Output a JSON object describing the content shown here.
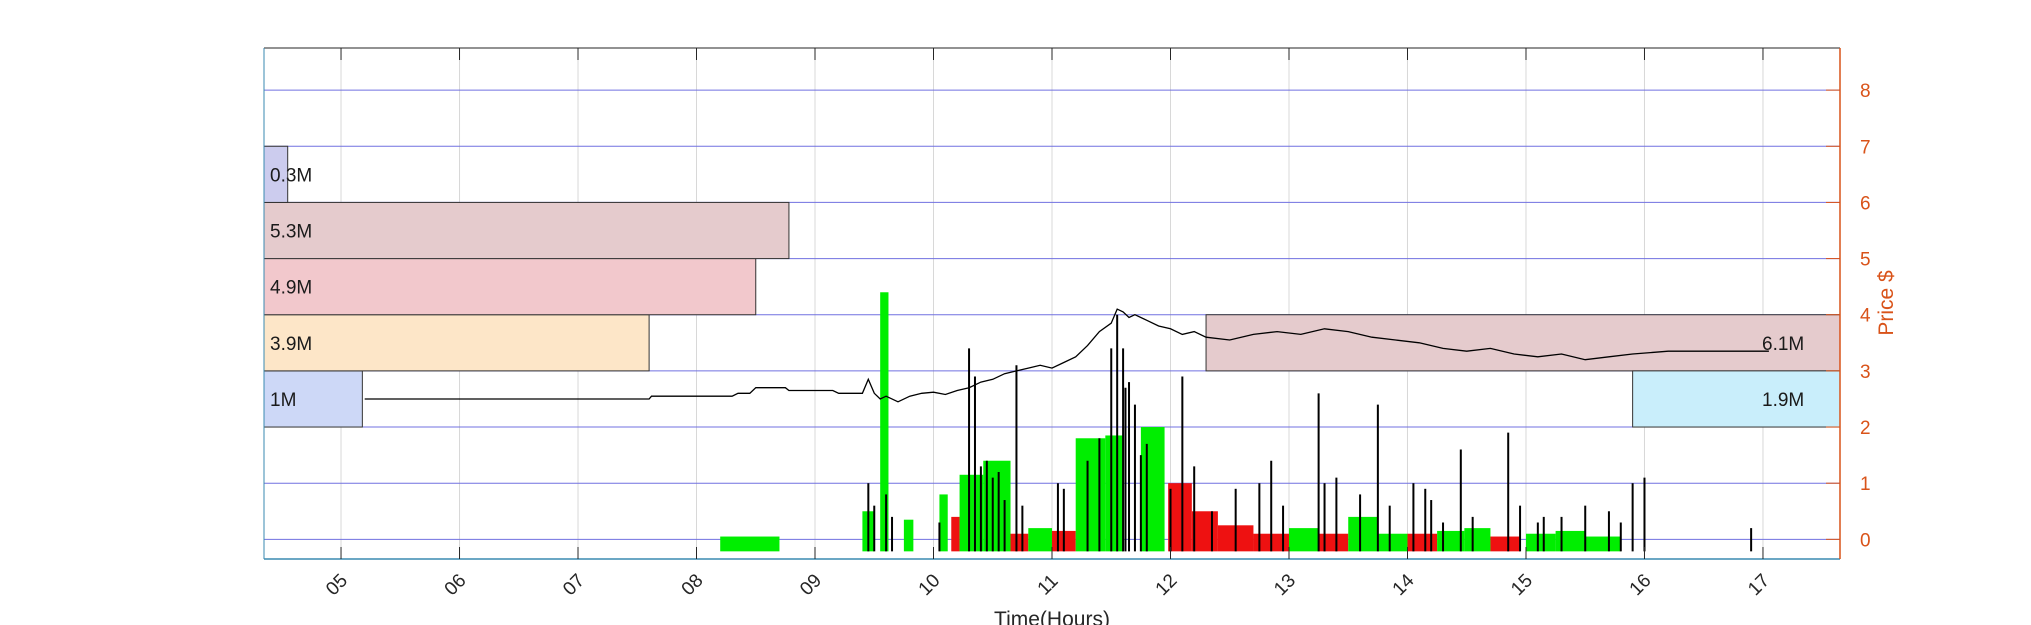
{
  "chart_data": {
    "type": "bar",
    "title": "",
    "xlabel": "Time(Hours)",
    "ylabel": "Price $",
    "x_ticks": [
      "05",
      "06",
      "07",
      "08",
      "09",
      "10",
      "11",
      "12",
      "13",
      "14",
      "15",
      "16",
      "17"
    ],
    "x_range_hours": [
      4.35,
      17.65
    ],
    "y_ticks": [
      0,
      1,
      2,
      3,
      4,
      5,
      6,
      7,
      8
    ],
    "y_range": [
      -0.35,
      8.75
    ],
    "grid": true,
    "colors": {
      "axis_right": "#d95319",
      "price_grid": "#7070e0",
      "time_grid": "#d8d8d8",
      "price_line": "#000000",
      "volume_up": "#00ee00",
      "volume_down": "#ee1111",
      "volume_tick": "#000000"
    },
    "volume_profile": [
      {
        "label": "1M",
        "price_low": 2,
        "price_high": 3,
        "extent_hours": 5.18,
        "side": "left",
        "color": "#cdd8f7"
      },
      {
        "label": "3.9M",
        "price_low": 3,
        "price_high": 4,
        "extent_hours": 7.6,
        "side": "left",
        "color": "#fde6c8"
      },
      {
        "label": "4.9M",
        "price_low": 4,
        "price_high": 5,
        "extent_hours": 8.5,
        "side": "left",
        "color": "#f2c8cc"
      },
      {
        "label": "5.3M",
        "price_low": 5,
        "price_high": 6,
        "extent_hours": 8.78,
        "side": "left",
        "color": "#e5cbcd"
      },
      {
        "label": "0.3M",
        "price_low": 6,
        "price_high": 7,
        "extent_hours": 4.55,
        "side": "left",
        "color": "#ccccee"
      },
      {
        "label": "6.1M",
        "price_low": 3,
        "price_high": 4,
        "extent_hours": 12.3,
        "side": "right",
        "color": "#e5cbcd"
      },
      {
        "label": "1.9M",
        "price_low": 2,
        "price_high": 3,
        "extent_hours": 15.9,
        "side": "right",
        "color": "#c9eefb"
      }
    ],
    "price_series": {
      "name": "",
      "x_hours": [
        5.2,
        7.6,
        7.62,
        8.3,
        8.35,
        8.45,
        8.5,
        8.75,
        8.78,
        9.15,
        9.2,
        9.4,
        9.45,
        9.5,
        9.55,
        9.6,
        9.7,
        9.8,
        9.9,
        10.0,
        10.1,
        10.2,
        10.3,
        10.4,
        10.5,
        10.6,
        10.7,
        10.8,
        10.9,
        11.0,
        11.1,
        11.2,
        11.3,
        11.4,
        11.5,
        11.55,
        11.6,
        11.65,
        11.7,
        11.8,
        11.9,
        12.0,
        12.1,
        12.2,
        12.3,
        12.5,
        12.7,
        12.9,
        13.1,
        13.3,
        13.5,
        13.7,
        13.9,
        14.1,
        14.3,
        14.5,
        14.7,
        14.9,
        15.1,
        15.3,
        15.5,
        15.7,
        15.9,
        16.2,
        16.5,
        16.8,
        17.05
      ],
      "values": [
        2.5,
        2.5,
        2.55,
        2.55,
        2.6,
        2.6,
        2.7,
        2.7,
        2.65,
        2.65,
        2.6,
        2.6,
        2.85,
        2.6,
        2.5,
        2.55,
        2.45,
        2.55,
        2.6,
        2.62,
        2.58,
        2.65,
        2.7,
        2.8,
        2.85,
        2.95,
        3.0,
        3.05,
        3.1,
        3.05,
        3.15,
        3.25,
        3.45,
        3.7,
        3.85,
        4.1,
        4.05,
        3.95,
        4.0,
        3.9,
        3.8,
        3.75,
        3.65,
        3.7,
        3.6,
        3.55,
        3.65,
        3.7,
        3.65,
        3.75,
        3.7,
        3.6,
        3.55,
        3.5,
        3.4,
        3.35,
        3.4,
        3.3,
        3.25,
        3.3,
        3.2,
        3.25,
        3.3,
        3.35,
        3.35,
        3.35,
        3.35
      ]
    },
    "volume_bars": [
      {
        "start_hours": 8.2,
        "end_hours": 8.7,
        "value": 0.05,
        "direction": "up"
      },
      {
        "start_hours": 9.4,
        "end_hours": 9.5,
        "value": 0.5,
        "direction": "up"
      },
      {
        "start_hours": 9.55,
        "end_hours": 9.62,
        "value": 4.4,
        "direction": "up"
      },
      {
        "start_hours": 9.75,
        "end_hours": 9.83,
        "value": 0.35,
        "direction": "up"
      },
      {
        "start_hours": 10.05,
        "end_hours": 10.12,
        "value": 0.8,
        "direction": "up"
      },
      {
        "start_hours": 10.15,
        "end_hours": 10.22,
        "value": 0.4,
        "direction": "down"
      },
      {
        "start_hours": 10.22,
        "end_hours": 10.42,
        "value": 1.15,
        "direction": "up"
      },
      {
        "start_hours": 10.42,
        "end_hours": 10.65,
        "value": 1.4,
        "direction": "up"
      },
      {
        "start_hours": 10.65,
        "end_hours": 10.8,
        "value": 0.1,
        "direction": "down"
      },
      {
        "start_hours": 10.8,
        "end_hours": 11.0,
        "value": 0.2,
        "direction": "up"
      },
      {
        "start_hours": 11.0,
        "end_hours": 11.2,
        "value": 0.15,
        "direction": "down"
      },
      {
        "start_hours": 11.2,
        "end_hours": 11.45,
        "value": 1.8,
        "direction": "up"
      },
      {
        "start_hours": 11.45,
        "end_hours": 11.6,
        "value": 1.85,
        "direction": "up"
      },
      {
        "start_hours": 11.75,
        "end_hours": 11.95,
        "value": 2.0,
        "direction": "up"
      },
      {
        "start_hours": 11.98,
        "end_hours": 12.18,
        "value": 1.0,
        "direction": "down"
      },
      {
        "start_hours": 12.18,
        "end_hours": 12.4,
        "value": 0.5,
        "direction": "down"
      },
      {
        "start_hours": 12.4,
        "end_hours": 12.7,
        "value": 0.25,
        "direction": "down"
      },
      {
        "start_hours": 12.7,
        "end_hours": 13.0,
        "value": 0.1,
        "direction": "down"
      },
      {
        "start_hours": 13.0,
        "end_hours": 13.25,
        "value": 0.2,
        "direction": "up"
      },
      {
        "start_hours": 13.25,
        "end_hours": 13.5,
        "value": 0.1,
        "direction": "down"
      },
      {
        "start_hours": 13.5,
        "end_hours": 13.75,
        "value": 0.4,
        "direction": "up"
      },
      {
        "start_hours": 13.75,
        "end_hours": 14.0,
        "value": 0.1,
        "direction": "up"
      },
      {
        "start_hours": 14.0,
        "end_hours": 14.25,
        "value": 0.1,
        "direction": "down"
      },
      {
        "start_hours": 14.25,
        "end_hours": 14.48,
        "value": 0.15,
        "direction": "up"
      },
      {
        "start_hours": 14.48,
        "end_hours": 14.7,
        "value": 0.2,
        "direction": "up"
      },
      {
        "start_hours": 14.7,
        "end_hours": 14.95,
        "value": 0.05,
        "direction": "down"
      },
      {
        "start_hours": 15.0,
        "end_hours": 15.25,
        "value": 0.1,
        "direction": "up"
      },
      {
        "start_hours": 15.25,
        "end_hours": 15.5,
        "value": 0.15,
        "direction": "up"
      },
      {
        "start_hours": 15.5,
        "end_hours": 15.8,
        "value": 0.05,
        "direction": "up"
      }
    ],
    "volume_ticks": {
      "x_hours": [
        9.45,
        9.5,
        9.6,
        9.65,
        10.05,
        10.3,
        10.35,
        10.4,
        10.45,
        10.5,
        10.55,
        10.6,
        10.7,
        10.75,
        11.05,
        11.1,
        11.3,
        11.4,
        11.5,
        11.55,
        11.6,
        11.62,
        11.65,
        11.7,
        11.75,
        11.8,
        12.0,
        12.1,
        12.2,
        12.35,
        12.55,
        12.75,
        12.85,
        12.95,
        13.25,
        13.3,
        13.4,
        13.6,
        13.75,
        13.85,
        14.05,
        14.15,
        14.2,
        14.3,
        14.45,
        14.55,
        14.85,
        14.95,
        15.1,
        15.15,
        15.3,
        15.5,
        15.7,
        15.8,
        15.9,
        16.0,
        16.9
      ],
      "values": [
        1.0,
        0.6,
        0.8,
        0.4,
        0.3,
        3.4,
        2.9,
        1.3,
        1.4,
        1.1,
        1.2,
        0.7,
        3.1,
        0.6,
        1.0,
        0.9,
        1.4,
        1.8,
        3.4,
        4.0,
        3.4,
        2.7,
        2.8,
        2.4,
        1.5,
        1.7,
        0.9,
        2.9,
        1.3,
        0.5,
        0.9,
        1.0,
        1.4,
        0.6,
        2.6,
        1.0,
        1.1,
        0.8,
        2.4,
        0.6,
        1.0,
        0.9,
        0.7,
        0.3,
        1.6,
        0.4,
        1.9,
        0.6,
        0.3,
        0.4,
        0.4,
        0.6,
        0.5,
        0.3,
        1.0,
        1.1,
        0.2
      ]
    }
  }
}
